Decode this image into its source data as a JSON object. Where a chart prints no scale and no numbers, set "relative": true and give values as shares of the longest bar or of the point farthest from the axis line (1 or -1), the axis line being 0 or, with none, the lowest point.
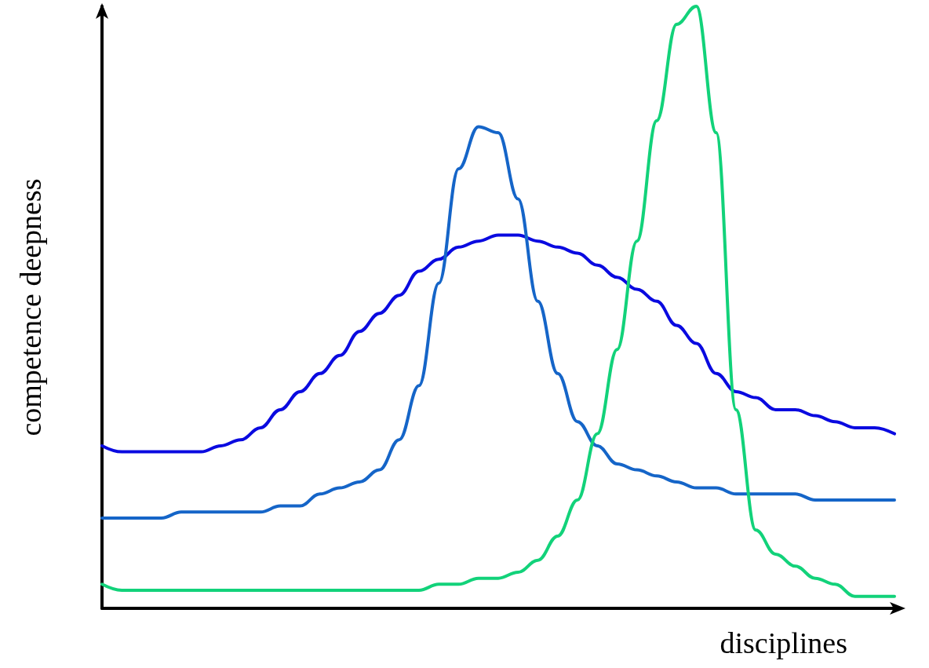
{
  "chart_data": {
    "type": "line",
    "relative": true,
    "xlabel": "disciplines",
    "ylabel": "competence deepness",
    "marker": "none",
    "line_style": "solid",
    "grid": false,
    "categories": [
      null,
      null,
      null,
      null,
      null,
      null,
      null,
      null,
      null,
      null,
      null,
      null,
      null,
      null,
      null,
      null,
      null,
      null,
      null,
      null,
      null,
      null,
      null,
      null,
      null,
      null,
      null,
      null,
      null,
      null,
      null,
      null,
      null,
      null,
      null,
      null,
      null,
      null,
      null,
      null,
      null
    ],
    "series": [
      {
        "color": "#0a0ae0",
        "values": [
          0.27,
          0.26,
          0.26,
          0.26,
          0.26,
          0.26,
          0.27,
          0.28,
          0.3,
          0.33,
          0.36,
          0.39,
          0.42,
          0.46,
          0.49,
          0.52,
          0.56,
          0.58,
          0.6,
          0.61,
          0.62,
          0.62,
          0.61,
          0.6,
          0.59,
          0.57,
          0.55,
          0.53,
          0.51,
          0.47,
          0.44,
          0.39,
          0.36,
          0.35,
          0.33,
          0.33,
          0.32,
          0.31,
          0.3,
          0.3,
          0.29
        ]
      },
      {
        "color": "#1565c8",
        "values": [
          0.15,
          0.15,
          0.15,
          0.15,
          0.16,
          0.16,
          0.16,
          0.16,
          0.16,
          0.17,
          0.17,
          0.19,
          0.2,
          0.21,
          0.23,
          0.28,
          0.37,
          0.54,
          0.73,
          0.8,
          0.79,
          0.68,
          0.51,
          0.39,
          0.31,
          0.27,
          0.24,
          0.23,
          0.22,
          0.21,
          0.2,
          0.2,
          0.19,
          0.19,
          0.19,
          0.19,
          0.18,
          0.18,
          0.18,
          0.18,
          0.18
        ]
      },
      {
        "color": "#12d27a",
        "values": [
          0.04,
          0.03,
          0.03,
          0.03,
          0.03,
          0.03,
          0.03,
          0.03,
          0.03,
          0.03,
          0.03,
          0.03,
          0.03,
          0.03,
          0.03,
          0.03,
          0.03,
          0.04,
          0.04,
          0.05,
          0.05,
          0.06,
          0.08,
          0.12,
          0.18,
          0.29,
          0.43,
          0.61,
          0.81,
          0.97,
          1,
          0.79,
          0.33,
          0.13,
          0.09,
          0.07,
          0.05,
          0.04,
          0.02,
          0.02,
          0.02
        ]
      }
    ]
  }
}
